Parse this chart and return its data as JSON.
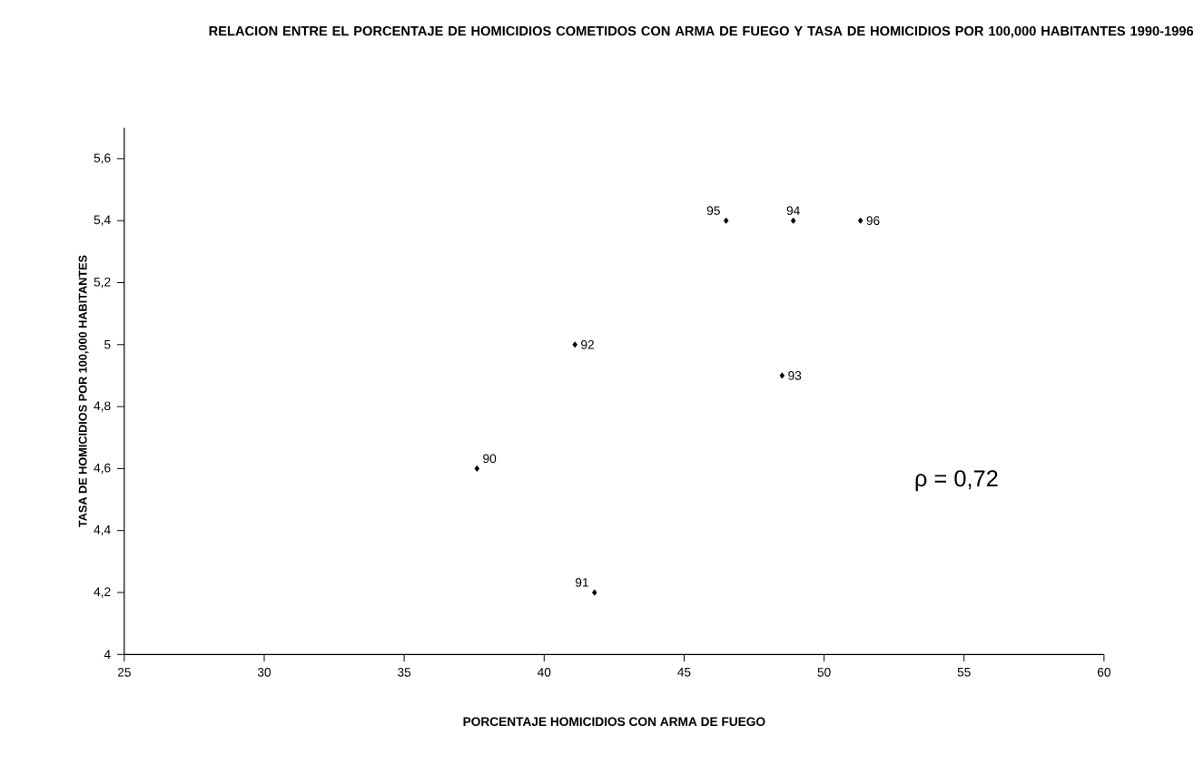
{
  "chart_data": {
    "type": "scatter",
    "title": "RELACION ENTRE EL PORCENTAJE DE HOMICIDIOS COMETIDOS CON ARMA DE FUEGO Y TASA DE HOMICIDIOS POR 100,000 HABITANTES 1990-1996",
    "xlabel": "PORCENTAJE HOMICIDIOS CON ARMA DE FUEGO",
    "ylabel": "TASA DE HOMICIDIOS POR 100,000 HABITANTES",
    "x": [
      37.6,
      41.8,
      41.1,
      48.5,
      48.9,
      46.5,
      51.3
    ],
    "values": [
      4.6,
      4.2,
      5.0,
      4.9,
      5.4,
      5.4,
      5.4
    ],
    "color": "#000000",
    "marker": "diamond",
    "grid": false,
    "xlim": [
      25,
      60
    ],
    "xticks": [
      25,
      30,
      35,
      40,
      45,
      50,
      55,
      60
    ],
    "ylim": [
      4,
      5.7
    ],
    "yticks": [
      4,
      {
        "value": 4.2,
        "label": "4,2"
      },
      {
        "value": 4.4,
        "label": "4,4"
      },
      {
        "value": 4.6,
        "label": "4,6"
      },
      {
        "value": 4.8,
        "label": "4,8"
      },
      5,
      {
        "value": 5.2,
        "label": "5,2"
      },
      {
        "value": 5.4,
        "label": "5,4"
      },
      {
        "value": 5.6,
        "label": "5,6"
      }
    ],
    "annotations": [
      {
        "text": "90",
        "x": 37.6,
        "y": 4.6
      },
      {
        "text": "91",
        "x": 41.8,
        "y": 4.2
      },
      {
        "text": "92",
        "x": 41.1,
        "y": 5.0
      },
      {
        "text": "93",
        "x": 48.5,
        "y": 4.9
      },
      {
        "text": "94",
        "x": 48.9,
        "y": 5.4
      },
      {
        "text": "95",
        "x": 46.5,
        "y": 5.4
      },
      {
        "text": "96",
        "x": 51.3,
        "y": 5.4
      },
      "ρ = 0,72"
    ]
  }
}
